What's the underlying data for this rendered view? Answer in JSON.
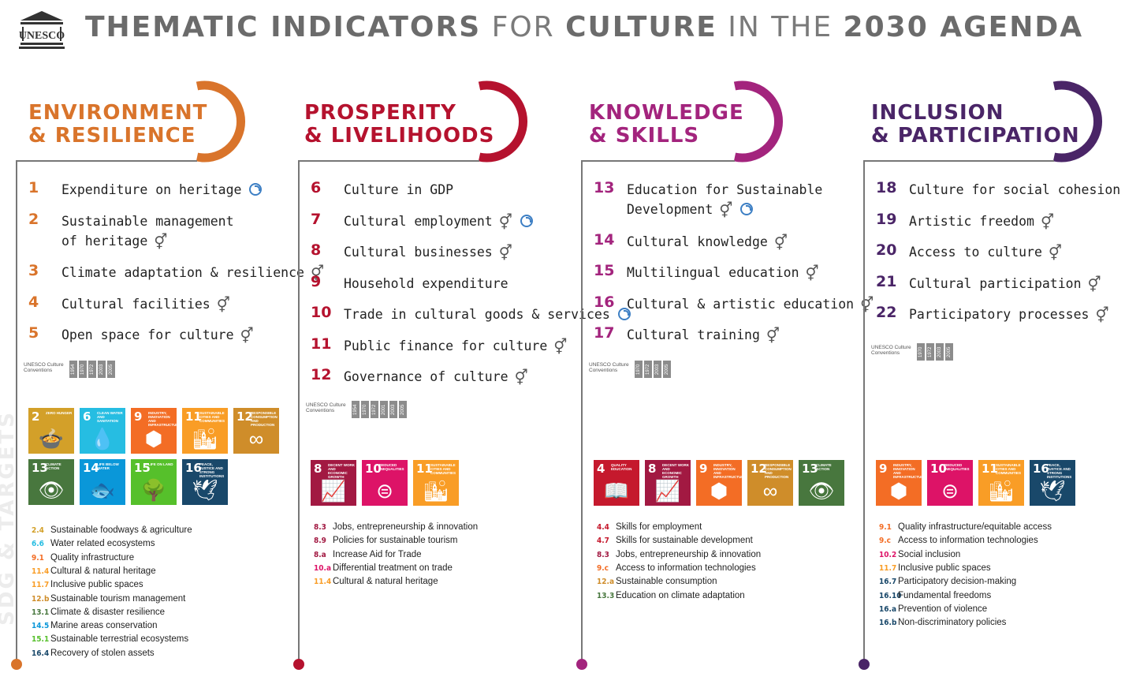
{
  "header": {
    "logo_text": "UNESCO",
    "title_parts": [
      {
        "text": "THEMATIC INDICATORS",
        "bold": true
      },
      {
        "text": " FOR ",
        "bold": false
      },
      {
        "text": "CULTURE",
        "bold": true
      },
      {
        "text": " IN THE ",
        "bold": false
      },
      {
        "text": "2030 AGENDA",
        "bold": true
      }
    ]
  },
  "watermark": "SDG & TARGETS",
  "colors": {
    "environment": "#d9742b",
    "prosperity": "#b5122e",
    "knowledge": "#a3247d",
    "inclusion": "#4a2567",
    "line": "#777777"
  },
  "conventions_label": "UNESCO Culture Conventions",
  "columns": [
    {
      "key": "environment",
      "heading_line1": "ENVIRONMENT",
      "heading_line2": "& RESILIENCE",
      "indicators": [
        {
          "num": "1",
          "text": "Expenditure on heritage",
          "gender": false,
          "cycle": true
        },
        {
          "num": "2",
          "text": "Sustainable management",
          "text2": "of heritage",
          "gender": true,
          "cycle": false
        },
        {
          "num": "3",
          "text": "Climate adaptation & resilience",
          "gender": true,
          "cycle": false
        },
        {
          "num": "4",
          "text": "Cultural facilities",
          "gender": true,
          "cycle": false
        },
        {
          "num": "5",
          "text": "Open space for culture",
          "gender": true,
          "cycle": false
        }
      ],
      "years": [
        "1954",
        "1970",
        "1972",
        "2003",
        "2005"
      ],
      "sdgs": [
        {
          "n": "2",
          "t": "Zero hunger",
          "c": "#d3a029",
          "i": "🍲"
        },
        {
          "n": "6",
          "t": "Clean water and sanitation",
          "c": "#26bde2",
          "i": "💧"
        },
        {
          "n": "9",
          "t": "Industry, innovation and infrastructure",
          "c": "#f36d25",
          "i": "⬢"
        },
        {
          "n": "11",
          "t": "Sustainable cities and communities",
          "c": "#f99d26",
          "i": "🏙"
        },
        {
          "n": "12",
          "t": "Responsible consumption and production",
          "c": "#cf8d2a",
          "i": "∞"
        },
        {
          "n": "13",
          "t": "Climate action",
          "c": "#48773e",
          "i": "👁"
        },
        {
          "n": "14",
          "t": "Life below water",
          "c": "#0a97d9",
          "i": "🐟"
        },
        {
          "n": "15",
          "t": "Life on land",
          "c": "#56c02b",
          "i": "🌳"
        },
        {
          "n": "16",
          "t": "Peace, justice and strong institutions",
          "c": "#19486a",
          "i": "🕊"
        }
      ],
      "targets": [
        {
          "code": "2.4",
          "text": "Sustainable foodways & agriculture",
          "color": "#d3a029"
        },
        {
          "code": "6.6",
          "text": "Water related ecosystems",
          "color": "#26bde2"
        },
        {
          "code": "9.1",
          "text": "Quality infrastructure",
          "color": "#f36d25"
        },
        {
          "code": "11.4",
          "text": "Cultural & natural heritage",
          "color": "#f99d26"
        },
        {
          "code": "11.7",
          "text": "Inclusive public spaces",
          "color": "#f99d26"
        },
        {
          "code": "12.b",
          "text": "Sustainable tourism management",
          "color": "#cf8d2a"
        },
        {
          "code": "13.1",
          "text": "Climate & disaster resilience",
          "color": "#48773e"
        },
        {
          "code": "14.5",
          "text": "Marine areas conservation",
          "color": "#0a97d9"
        },
        {
          "code": "15.1",
          "text": "Sustainable terrestrial ecosystems",
          "color": "#56c02b"
        },
        {
          "code": "16.4",
          "text": "Recovery of stolen assets",
          "color": "#19486a"
        }
      ]
    },
    {
      "key": "prosperity",
      "heading_line1": "PROSPERITY",
      "heading_line2": "& LIVELIHOODS",
      "indicators": [
        {
          "num": "6",
          "text": "Culture in GDP",
          "gender": false,
          "cycle": false
        },
        {
          "num": "7",
          "text": "Cultural employment",
          "gender": true,
          "cycle": true
        },
        {
          "num": "8",
          "text": "Cultural businesses",
          "gender": true,
          "cycle": false
        },
        {
          "num": "9",
          "text": "Household expenditure",
          "gender": false,
          "cycle": false
        },
        {
          "num": "10",
          "text": "Trade in cultural goods & services",
          "gender": false,
          "cycle": true
        },
        {
          "num": "11",
          "text": "Public finance for culture",
          "gender": true,
          "cycle": false
        },
        {
          "num": "12",
          "text": "Governance of culture",
          "gender": true,
          "cycle": false
        }
      ],
      "years": [
        "1954",
        "1970",
        "1972",
        "2001",
        "2003",
        "2005"
      ],
      "sdgs": [
        {
          "n": "8",
          "t": "Decent work and economic growth",
          "c": "#a21942",
          "i": "📈"
        },
        {
          "n": "10",
          "t": "Reduced inequalities",
          "c": "#dd1367",
          "i": "⊜"
        },
        {
          "n": "11",
          "t": "Sustainable cities and communities",
          "c": "#f99d26",
          "i": "🏙"
        }
      ],
      "targets": [
        {
          "code": "8.3",
          "text": "Jobs, entrepreneurship & innovation",
          "color": "#a21942"
        },
        {
          "code": "8.9",
          "text": "Policies for sustainable tourism",
          "color": "#a21942"
        },
        {
          "code": "8.a",
          "text": "Increase Aid for Trade",
          "color": "#a21942"
        },
        {
          "code": "10.a",
          "text": "Differential treatment on trade",
          "color": "#dd1367"
        },
        {
          "code": "11.4",
          "text": "Cultural & natural heritage",
          "color": "#f99d26"
        }
      ]
    },
    {
      "key": "knowledge",
      "heading_line1": "KNOWLEDGE",
      "heading_line2": "& SKILLS",
      "indicators": [
        {
          "num": "13",
          "text": "Education for Sustainable",
          "text2": "Development",
          "gender": true,
          "cycle": true
        },
        {
          "num": "14",
          "text": "Cultural knowledge",
          "gender": true,
          "cycle": false
        },
        {
          "num": "15",
          "text": "Multilingual education",
          "gender": true,
          "cycle": false
        },
        {
          "num": "16",
          "text": "Cultural & artistic education",
          "gender": true,
          "cycle": false
        },
        {
          "num": "17",
          "text": "Cultural training",
          "gender": true,
          "cycle": false
        }
      ],
      "years": [
        "1970",
        "1972",
        "2003",
        "2005"
      ],
      "sdgs": [
        {
          "n": "4",
          "t": "Quality education",
          "c": "#c5192d",
          "i": "📖"
        },
        {
          "n": "8",
          "t": "Decent work and economic growth",
          "c": "#a21942",
          "i": "📈"
        },
        {
          "n": "9",
          "t": "Industry, innovation and infrastructure",
          "c": "#f36d25",
          "i": "⬢"
        },
        {
          "n": "12",
          "t": "Responsible consumption and production",
          "c": "#cf8d2a",
          "i": "∞"
        },
        {
          "n": "13",
          "t": "Climate action",
          "c": "#48773e",
          "i": "👁"
        }
      ],
      "targets": [
        {
          "code": "4.4",
          "text": "Skills for employment",
          "color": "#c5192d"
        },
        {
          "code": "4.7",
          "text": "Skills for sustainable development",
          "color": "#c5192d"
        },
        {
          "code": "8.3",
          "text": "Jobs, entrepreneurship & innovation",
          "color": "#a21942"
        },
        {
          "code": "9.c",
          "text": "Access to information technologies",
          "color": "#f36d25"
        },
        {
          "code": "12.a",
          "text": "Sustainable consumption",
          "color": "#cf8d2a"
        },
        {
          "code": "13.3",
          "text": "Education on climate adaptation",
          "color": "#48773e"
        }
      ]
    },
    {
      "key": "inclusion",
      "heading_line1": "INCLUSION",
      "heading_line2": "& PARTICIPATION",
      "indicators": [
        {
          "num": "18",
          "text": "Culture for social cohesion",
          "gender": true,
          "cycle": false
        },
        {
          "num": "19",
          "text": "Artistic freedom",
          "gender": true,
          "cycle": false
        },
        {
          "num": "20",
          "text": "Access to culture",
          "gender": true,
          "cycle": false
        },
        {
          "num": "21",
          "text": "Cultural participation",
          "gender": true,
          "cycle": false
        },
        {
          "num": "22",
          "text": "Participatory processes",
          "gender": true,
          "cycle": false
        }
      ],
      "years": [
        "1970",
        "1972",
        "2003",
        "2005"
      ],
      "sdgs": [
        {
          "n": "9",
          "t": "Industry, innovation and infrastructure",
          "c": "#f36d25",
          "i": "⬢"
        },
        {
          "n": "10",
          "t": "Reduced inequalities",
          "c": "#dd1367",
          "i": "⊜"
        },
        {
          "n": "11",
          "t": "Sustainable cities and communities",
          "c": "#f99d26",
          "i": "🏙"
        },
        {
          "n": "16",
          "t": "Peace, justice and strong institutions",
          "c": "#19486a",
          "i": "🕊"
        }
      ],
      "targets": [
        {
          "code": "9.1",
          "text": "Quality infrastructure/equitable access",
          "color": "#f36d25"
        },
        {
          "code": "9.c",
          "text": "Access to information technologies",
          "color": "#f36d25"
        },
        {
          "code": "10.2",
          "text": "Social inclusion",
          "color": "#dd1367"
        },
        {
          "code": "11.7",
          "text": "Inclusive public spaces",
          "color": "#f99d26"
        },
        {
          "code": "16.7",
          "text": "Participatory decision-making",
          "color": "#19486a"
        },
        {
          "code": "16.10",
          "text": "Fundamental freedoms",
          "color": "#19486a"
        },
        {
          "code": "16.a",
          "text": "Prevention of violence",
          "color": "#19486a"
        },
        {
          "code": "16.b",
          "text": "Non-discriminatory policies",
          "color": "#19486a"
        }
      ]
    }
  ]
}
